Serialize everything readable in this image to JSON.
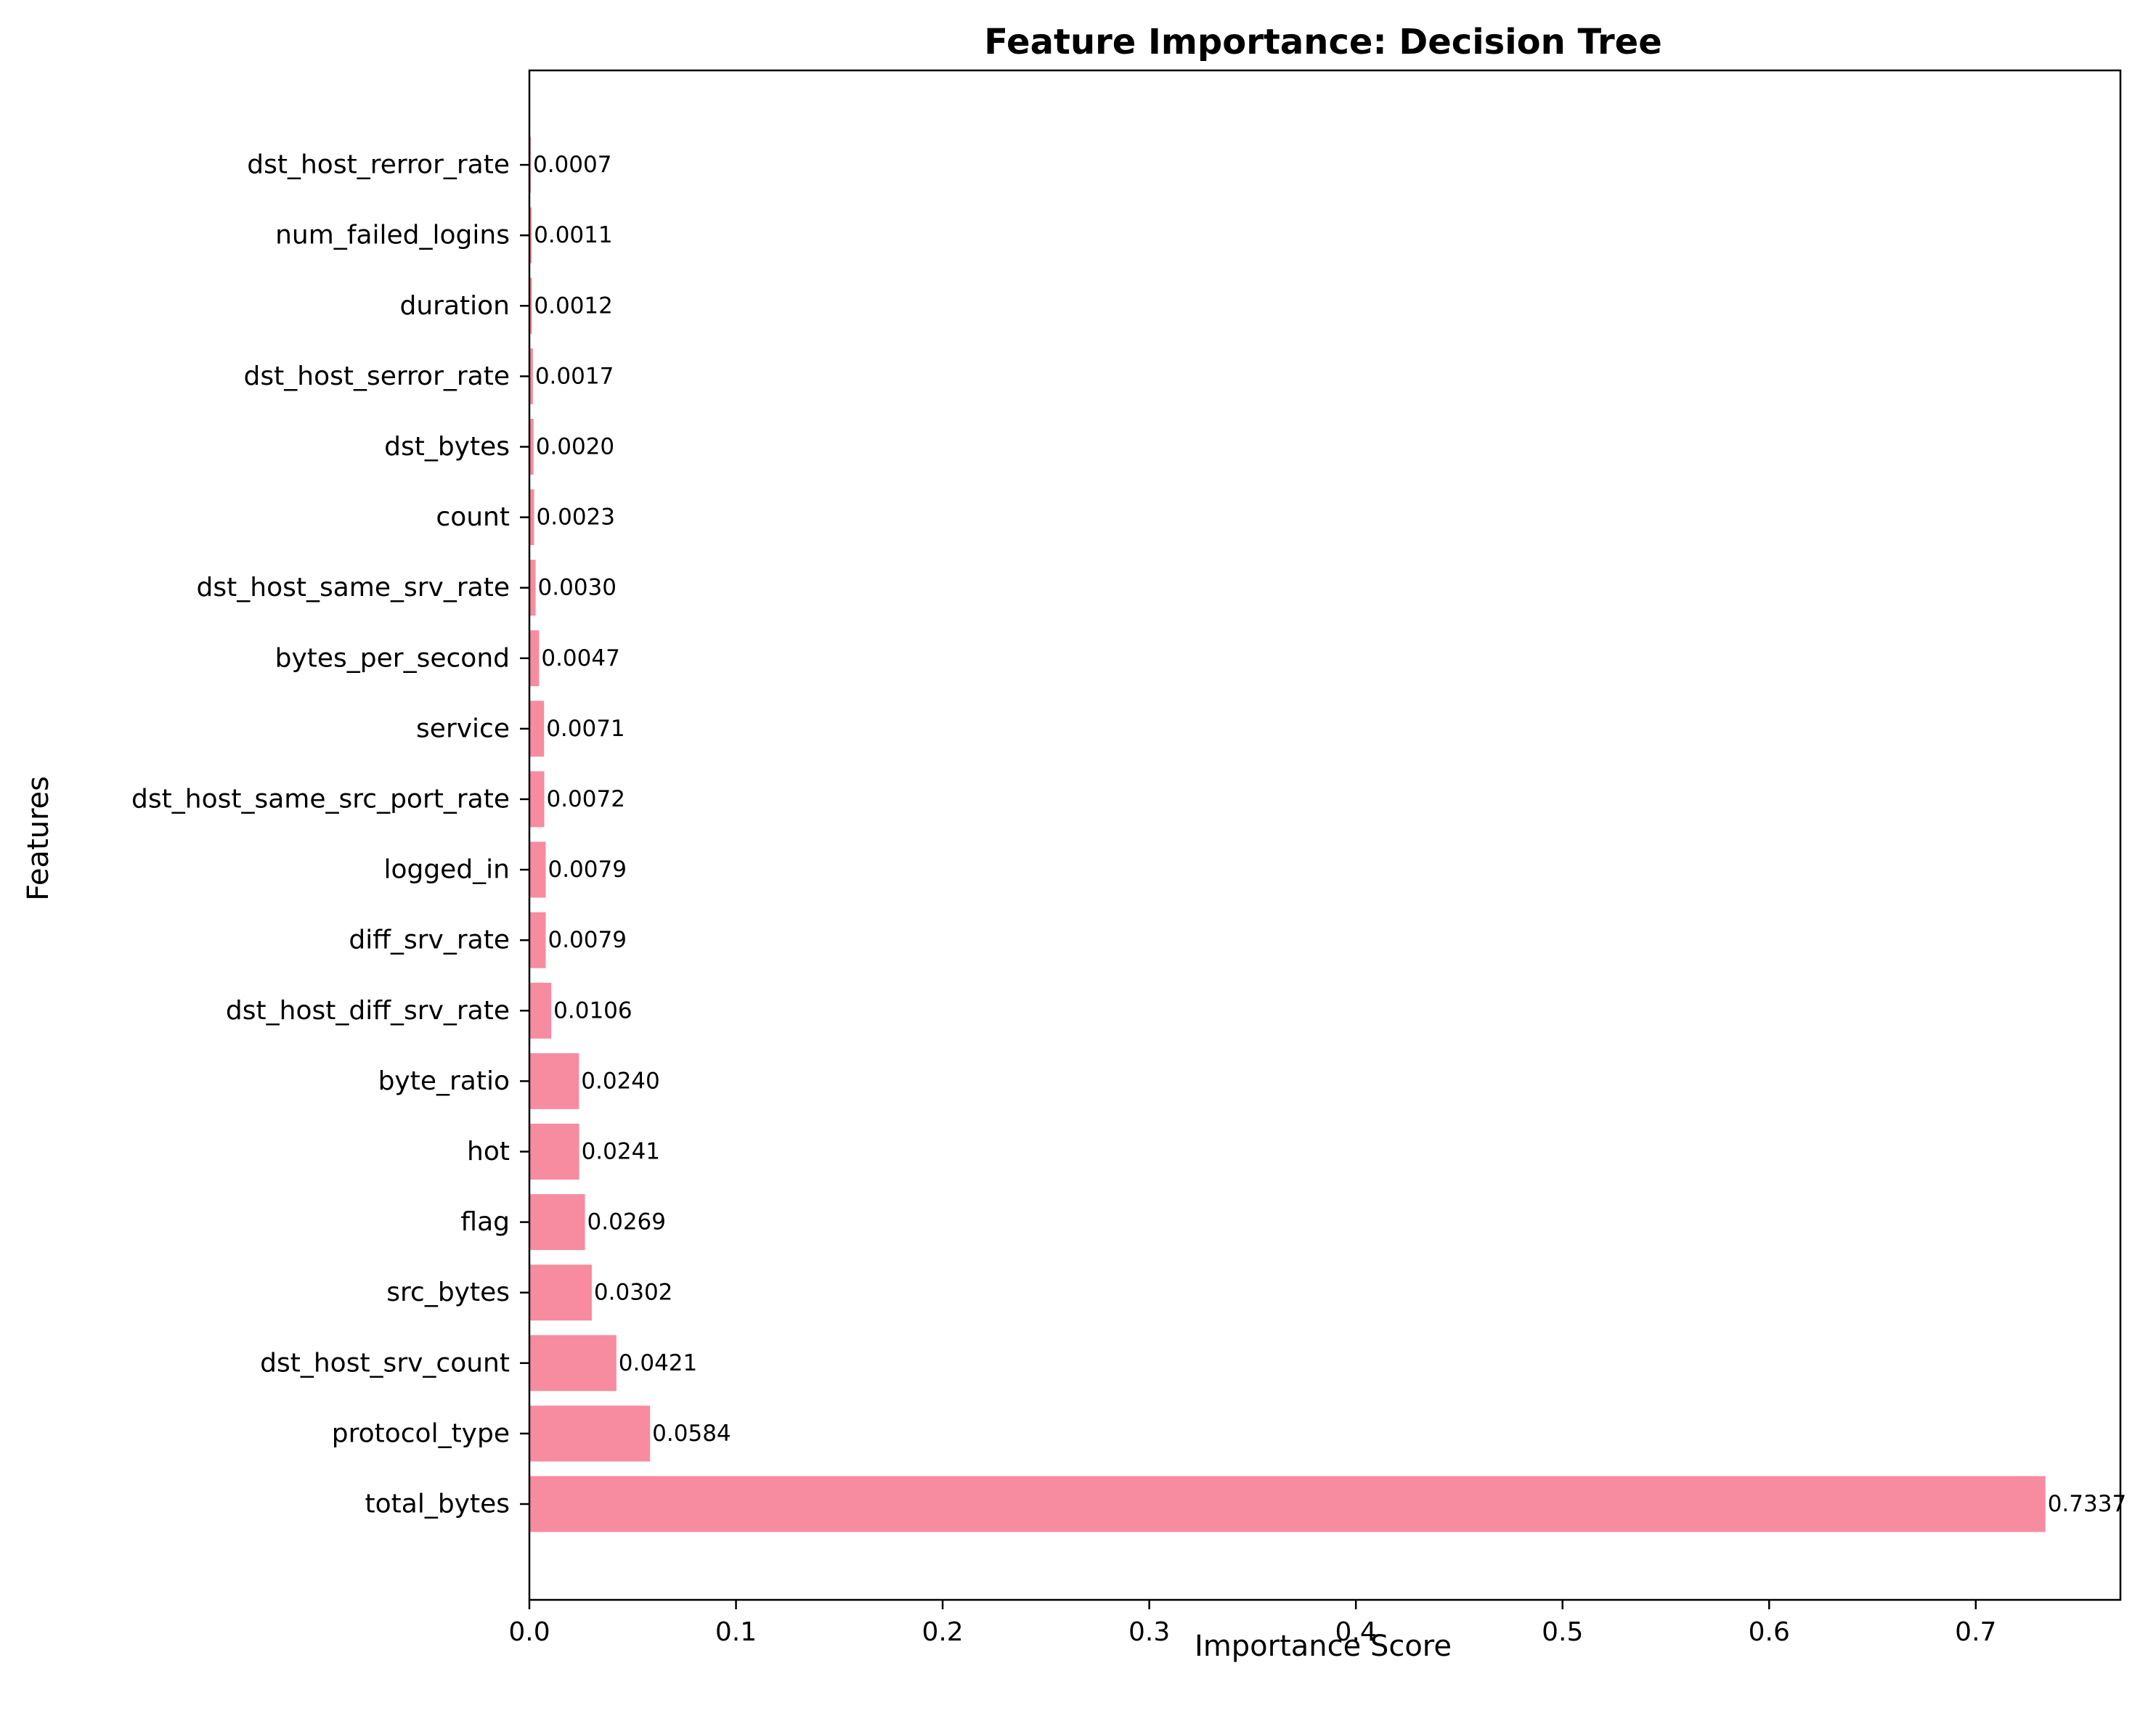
{
  "chart_data": {
    "type": "bar",
    "orientation": "horizontal",
    "title": "Feature Importance: Decision Tree",
    "xlabel": "Importance Score",
    "ylabel": "Features",
    "xlim": [
      0,
      0.77
    ],
    "xticks": [
      "0.0",
      "0.1",
      "0.2",
      "0.3",
      "0.4",
      "0.5",
      "0.6",
      "0.7"
    ],
    "grid": false,
    "legend": "none",
    "bar_color": "#f78b9f",
    "categories": [
      "total_bytes",
      "protocol_type",
      "dst_host_srv_count",
      "src_bytes",
      "flag",
      "hot",
      "byte_ratio",
      "dst_host_diff_srv_rate",
      "diff_srv_rate",
      "logged_in",
      "dst_host_same_src_port_rate",
      "service",
      "bytes_per_second",
      "dst_host_same_srv_rate",
      "count",
      "dst_bytes",
      "dst_host_serror_rate",
      "duration",
      "num_failed_logins",
      "dst_host_rerror_rate"
    ],
    "values": [
      0.7337,
      0.0584,
      0.0421,
      0.0302,
      0.0269,
      0.0241,
      0.024,
      0.0106,
      0.0079,
      0.0079,
      0.0072,
      0.0071,
      0.0047,
      0.003,
      0.0023,
      0.002,
      0.0017,
      0.0012,
      0.0011,
      0.0007
    ],
    "data_labels": [
      "0.7337",
      "0.0584",
      "0.0421",
      "0.0302",
      "0.0269",
      "0.0241",
      "0.0240",
      "0.0106",
      "0.0079",
      "0.0079",
      "0.0072",
      "0.0071",
      "0.0047",
      "0.0030",
      "0.0023",
      "0.0020",
      "0.0017",
      "0.0012",
      "0.0011",
      "0.0007"
    ]
  }
}
